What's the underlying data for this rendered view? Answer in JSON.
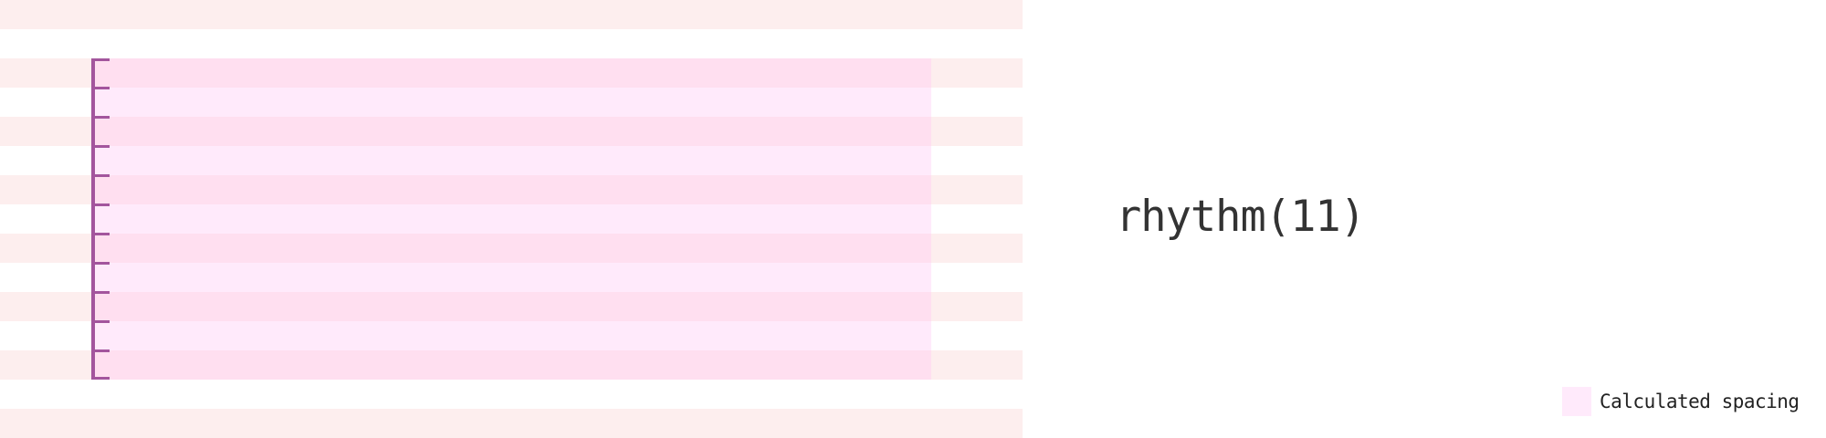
{
  "diagram": {
    "function_label": "rhythm(11)",
    "rhythm_units": 11,
    "colors": {
      "baseline_stripe": "#fdeeee",
      "spacing_dark": "#ffdff0",
      "spacing_light": "#ffeafb",
      "marker": "#a3559d",
      "text": "#333333"
    }
  },
  "legend": {
    "label": "Calculated spacing",
    "swatch_color": "#ffeafb"
  }
}
